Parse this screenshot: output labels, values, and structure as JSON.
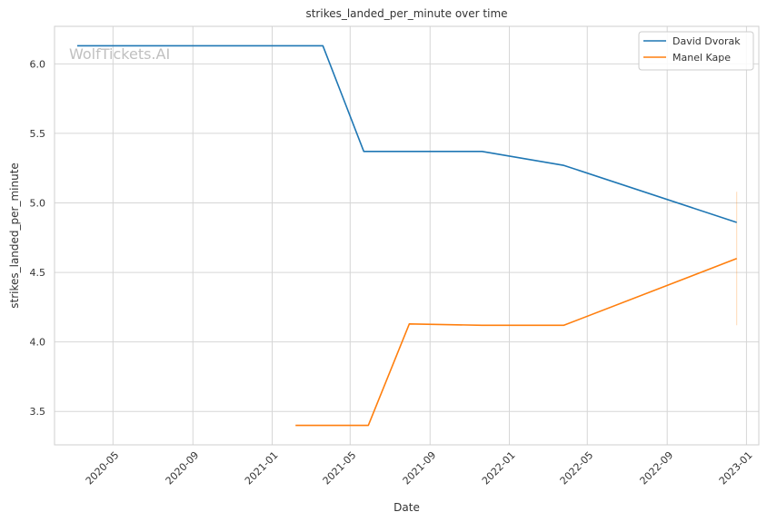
{
  "chart_data": {
    "type": "line",
    "title": "strikes_landed_per_minute over time",
    "xlabel": "Date",
    "ylabel": "strikes_landed_per_minute",
    "watermark": "WolfTickets.AI",
    "grid": true,
    "legend_position": "top-right",
    "x_axis_type": "date",
    "xlim": [
      "2020-02-01",
      "2023-01-20"
    ],
    "ylim": [
      3.26,
      6.27
    ],
    "x_ticks": [
      "2020-05-01",
      "2020-09-01",
      "2021-01-01",
      "2021-05-01",
      "2021-09-01",
      "2022-01-01",
      "2022-05-01",
      "2022-09-01",
      "2023-01-01"
    ],
    "x_tick_labels": [
      "2020-05",
      "2020-09",
      "2021-01",
      "2021-05",
      "2021-09",
      "2022-01",
      "2022-05",
      "2022-09",
      "2023-01"
    ],
    "y_ticks": [
      3.5,
      4.0,
      4.5,
      5.0,
      5.5,
      6.0
    ],
    "y_tick_labels": [
      "3.5",
      "4.0",
      "4.5",
      "5.0",
      "5.5",
      "6.0"
    ],
    "series": [
      {
        "name": "David Dvorak",
        "color": "#1f77b4",
        "x": [
          "2020-03-07",
          "2021-03-20",
          "2021-05-22",
          "2021-11-20",
          "2022-03-26",
          "2022-12-17"
        ],
        "y": [
          6.13,
          6.13,
          5.37,
          5.37,
          5.27,
          4.86
        ]
      },
      {
        "name": "Manel Kape",
        "color": "#ff7f0e",
        "x": [
          "2021-02-06",
          "2021-05-29",
          "2021-07-31",
          "2021-11-20",
          "2022-03-26",
          "2022-12-17"
        ],
        "y": [
          3.4,
          3.4,
          4.13,
          4.12,
          4.12,
          4.6
        ]
      }
    ],
    "error_bar": {
      "x": "2022-12-17",
      "y_low": 4.12,
      "y_high": 5.08,
      "color": "#ff7f0e"
    }
  }
}
